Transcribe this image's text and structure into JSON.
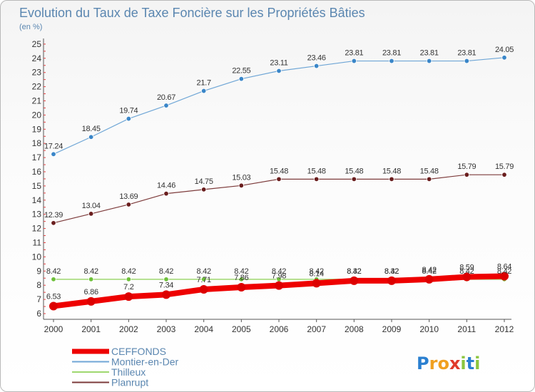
{
  "chart_data": {
    "type": "line",
    "title": "Evolution du Taux de Taxe Foncière sur les Propriétés Bâties",
    "subtitle": "(en %)",
    "categories": [
      "2000",
      "2001",
      "2002",
      "2003",
      "2004",
      "2005",
      "2006",
      "2007",
      "2008",
      "2009",
      "2010",
      "2011",
      "2012"
    ],
    "ylim": [
      6,
      25
    ],
    "yticks": [
      "6",
      "7",
      "8",
      "9",
      "10",
      "11",
      "12",
      "13",
      "14",
      "15",
      "16",
      "17",
      "18",
      "19",
      "20",
      "21",
      "22",
      "23",
      "24",
      "25"
    ],
    "grid": false,
    "legend_position": "bottom-left",
    "series": [
      {
        "name": "CEFFONDS",
        "color": "#ee0000",
        "point_color": "#dd0000",
        "width": 8,
        "radius": 6,
        "values": [
          6.53,
          6.86,
          7.2,
          7.34,
          7.71,
          7.86,
          7.98,
          8.14,
          8.32,
          8.32,
          8.42,
          8.59,
          8.64
        ],
        "labels": [
          "6.53",
          "6.86",
          "7.2",
          "7.34",
          "7.71",
          "7.86",
          "7.98",
          "8.14",
          "8.32",
          "8.32",
          "8.42",
          "8.59",
          "8.64"
        ]
      },
      {
        "name": "Montier-en-Der",
        "color": "#6fa6d6",
        "point_color": "#3a86c8",
        "width": 1.2,
        "radius": 3.3,
        "values": [
          17.24,
          18.45,
          19.74,
          20.67,
          21.7,
          22.55,
          23.11,
          23.46,
          23.81,
          23.81,
          23.81,
          23.81,
          24.05
        ],
        "labels": [
          "17.24",
          "18.45",
          "19.74",
          "20.67",
          "21.7",
          "22.55",
          "23.11",
          "23.46",
          "23.81",
          "23.81",
          "23.81",
          "23.81",
          "24.05"
        ]
      },
      {
        "name": "Thilleux",
        "color": "#9fd86f",
        "point_color": "#6ec03a",
        "width": 1.5,
        "radius": 3.3,
        "values": [
          8.42,
          8.42,
          8.42,
          8.42,
          8.42,
          8.42,
          8.42,
          8.42,
          8.42,
          8.42,
          8.42,
          8.42,
          8.42
        ],
        "labels": [
          "8.42",
          "8.42",
          "8.42",
          "8.42",
          "8.42",
          "8.42",
          "8.42",
          "8.42",
          "8.42",
          "8.42",
          "8.42",
          "8.42",
          "8.42"
        ]
      },
      {
        "name": "Planrupt",
        "color": "#7d3b3b",
        "point_color": "#6a1e1e",
        "width": 1.2,
        "radius": 3.3,
        "values": [
          12.39,
          13.04,
          13.69,
          14.46,
          14.75,
          15.03,
          15.48,
          15.48,
          15.48,
          15.48,
          15.48,
          15.79,
          15.79
        ],
        "labels": [
          "12.39",
          "13.04",
          "13.69",
          "14.46",
          "14.75",
          "15.03",
          "15.48",
          "15.48",
          "15.48",
          "15.48",
          "15.48",
          "15.79",
          "15.79"
        ]
      }
    ]
  },
  "brand": {
    "name": "Proxiti",
    "letters": [
      {
        "ch": "P",
        "color": "#2a7fd0"
      },
      {
        "ch": "r",
        "color": "#f0a020"
      },
      {
        "ch": "o",
        "color": "#f0a020"
      },
      {
        "ch": "x",
        "color": "#e03a2a"
      },
      {
        "ch": "i",
        "color": "#8cc63f"
      },
      {
        "ch": "t",
        "color": "#2a7fd0"
      },
      {
        "ch": "i",
        "color": "#8cc63f"
      }
    ]
  }
}
